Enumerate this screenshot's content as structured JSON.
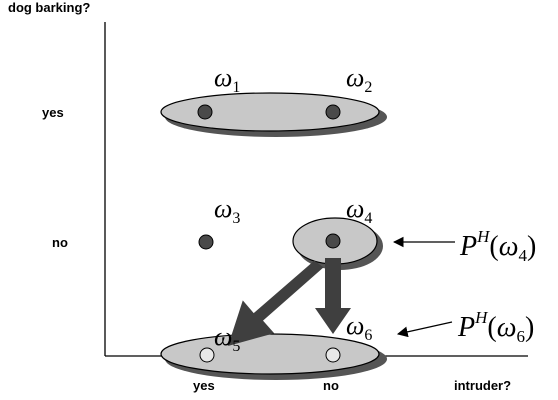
{
  "axes": {
    "y_title": "dog barking?",
    "x_title": "intruder?",
    "y_tick_yes": "yes",
    "y_tick_no": "no",
    "x_tick_yes": "yes",
    "x_tick_no": "no"
  },
  "worlds": {
    "w1": {
      "symbol": "ω",
      "subscript": "1"
    },
    "w2": {
      "symbol": "ω",
      "subscript": "2"
    },
    "w3": {
      "symbol": "ω",
      "subscript": "3"
    },
    "w4": {
      "symbol": "ω",
      "subscript": "4"
    },
    "w5": {
      "symbol": "ω",
      "subscript": "5"
    },
    "w6": {
      "symbol": "ω",
      "subscript": "6"
    }
  },
  "labels": {
    "ph4": {
      "prefix": "P",
      "superscript": "H",
      "open": "(",
      "symbol": "ω",
      "subscript": "4",
      "close": ")"
    },
    "ph6": {
      "prefix": "P",
      "superscript": "H",
      "open": "(",
      "symbol": "ω",
      "subscript": "6",
      "close": ")"
    }
  },
  "colors": {
    "ellipse_fill": "#c8c8c8",
    "ellipse_shadow": "#555555",
    "dot_dark": "#4a4a4a",
    "dot_light": "#e8e8e8",
    "arrow_fill": "#3f3f3f"
  }
}
